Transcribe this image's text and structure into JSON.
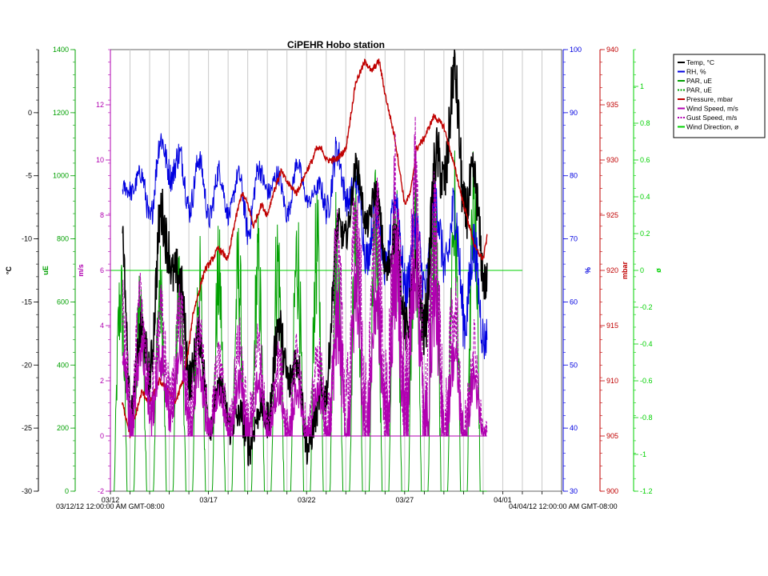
{
  "chart_data": {
    "type": "line",
    "title": "CiPEHR Hobo station",
    "x_start_label": "03/12/12 12:00:00 AM GMT-08:00",
    "x_end_label": "04/04/12 12:00:00 AM GMT-08:00",
    "x_range_days": [
      0,
      23
    ],
    "x_ticks": [
      {
        "day": 0,
        "label": "03/12"
      },
      {
        "day": 5,
        "label": "03/17"
      },
      {
        "day": 10,
        "label": "03/22"
      },
      {
        "day": 15,
        "label": "03/27"
      },
      {
        "day": 20,
        "label": "04/01"
      }
    ],
    "axes": [
      {
        "id": "temp",
        "unit": "°C",
        "color": "#000000",
        "range": [
          -30,
          5
        ],
        "ticks": [
          0,
          -5,
          -10,
          -15,
          -20,
          -25,
          -30
        ]
      },
      {
        "id": "par",
        "unit": "uE",
        "color": "#00a000",
        "range": [
          0,
          1400
        ],
        "ticks": [
          0,
          200,
          400,
          600,
          800,
          1000,
          1200,
          1400
        ]
      },
      {
        "id": "wind",
        "unit": "m/s",
        "color": "#b000b0",
        "range": [
          -2,
          14
        ],
        "ticks": [
          -2,
          0,
          2,
          4,
          6,
          8,
          10,
          12
        ]
      },
      {
        "id": "rh",
        "unit": "%",
        "color": "#0000e0",
        "range": [
          30,
          100
        ],
        "ticks": [
          30,
          40,
          50,
          60,
          70,
          80,
          90,
          100
        ]
      },
      {
        "id": "pressure",
        "unit": "mbar",
        "color": "#c00000",
        "range": [
          900,
          940
        ],
        "ticks": [
          900,
          905,
          910,
          915,
          920,
          925,
          930,
          935,
          940
        ]
      },
      {
        "id": "wdir",
        "unit": "ø",
        "color": "#00d000",
        "range": [
          -1.2,
          1.2
        ],
        "ticks": [
          -1.2,
          -1,
          -0.8,
          -0.6,
          -0.4,
          -0.2,
          0,
          0.2,
          0.4,
          0.6,
          0.8,
          1
        ]
      }
    ],
    "legend": {
      "placement": "right",
      "entries": [
        {
          "label": "Temp, °C",
          "color": "#000000",
          "dash": false
        },
        {
          "label": "RH, %",
          "color": "#0000e0",
          "dash": false
        },
        {
          "label": "PAR, uE",
          "color": "#00a000",
          "dash": false
        },
        {
          "label": "PAR, uE",
          "color": "#00a000",
          "dash": true
        },
        {
          "label": "Pressure, mbar",
          "color": "#c00000",
          "dash": false
        },
        {
          "label": "Wind Speed, m/s",
          "color": "#b000b0",
          "dash": false
        },
        {
          "label": "Gust Speed, m/s",
          "color": "#b000b0",
          "dash": true
        },
        {
          "label": "Wind Direction, ø",
          "color": "#00d000",
          "dash": false
        }
      ]
    },
    "series": [
      {
        "name": "Temp, °C",
        "axis": "temp",
        "color": "#000000",
        "x": [
          0.6,
          1.0,
          1.5,
          2.0,
          2.5,
          3.0,
          3.5,
          4.0,
          4.5,
          5.0,
          5.5,
          6.0,
          6.5,
          7.0,
          7.5,
          8.0,
          8.5,
          9.0,
          9.5,
          10.0,
          10.5,
          11.0,
          11.5,
          12.0,
          12.5,
          13.0,
          13.5,
          14.0,
          14.5,
          15.0,
          15.5,
          16.0,
          16.5,
          17.0,
          17.5,
          18.0,
          18.5,
          19.0,
          19.2
        ],
        "mean": [
          -10,
          -22,
          -20,
          -18,
          -12,
          -8,
          -16,
          -18,
          -20,
          -22,
          -24,
          -22,
          -26,
          -24,
          -26,
          -22,
          -20,
          -18,
          -22,
          -24,
          -26,
          -20,
          -12,
          -8,
          -6,
          -7,
          -8,
          -10,
          -12,
          -14,
          -16,
          -14,
          -8,
          -2,
          0,
          -4,
          -8,
          -10,
          -12
        ],
        "amp": [
          3,
          4,
          4,
          5,
          6,
          5,
          5,
          5,
          4,
          4,
          3,
          4,
          3,
          4,
          3,
          4,
          5,
          5,
          4,
          4,
          3,
          4,
          4,
          3,
          3,
          3,
          3,
          4,
          4,
          5,
          5,
          6,
          6,
          6,
          6,
          6,
          5,
          5,
          4
        ]
      },
      {
        "name": "RH, %",
        "axis": "rh",
        "color": "#0000e0",
        "x": [
          0.6,
          1.0,
          1.5,
          2.0,
          2.5,
          3.0,
          3.5,
          4.0,
          4.5,
          5.0,
          5.5,
          6.0,
          6.5,
          7.0,
          7.5,
          8.0,
          8.5,
          9.0,
          9.5,
          10.0,
          10.5,
          11.0,
          11.5,
          12.0,
          12.5,
          13.0,
          13.5,
          14.0,
          14.5,
          15.0,
          15.5,
          16.0,
          16.5,
          17.0,
          17.5,
          18.0,
          18.5,
          19.0,
          19.2
        ],
        "mean": [
          76,
          80,
          78,
          76,
          82,
          84,
          80,
          78,
          80,
          76,
          78,
          76,
          78,
          74,
          78,
          80,
          78,
          76,
          80,
          78,
          76,
          78,
          80,
          80,
          76,
          72,
          70,
          70,
          72,
          68,
          66,
          68,
          70,
          72,
          68,
          64,
          62,
          60,
          58
        ],
        "amp": [
          3,
          4,
          4,
          6,
          6,
          6,
          6,
          6,
          5,
          5,
          5,
          4,
          4,
          6,
          5,
          4,
          4,
          4,
          4,
          3,
          3,
          6,
          7,
          6,
          6,
          8,
          8,
          8,
          8,
          10,
          10,
          10,
          10,
          10,
          12,
          12,
          12,
          10,
          8
        ]
      },
      {
        "name": "Pressure, mbar",
        "axis": "pressure",
        "color": "#c00000",
        "x": [
          0.6,
          0.9,
          1.0,
          1.3,
          1.6,
          2.0,
          2.5,
          3.0,
          3.3,
          3.7,
          4.0,
          4.2,
          4.5,
          4.8,
          5.2,
          5.5,
          6.0,
          6.3,
          6.7,
          7.0,
          7.3,
          7.7,
          8.0,
          8.3,
          8.7,
          9.0,
          9.5,
          10.0,
          10.3,
          10.5,
          10.8,
          11.0,
          11.5,
          12.0,
          12.5,
          13.0,
          13.3,
          13.7,
          14.0,
          14.5,
          15.0,
          15.3,
          15.6,
          16.0,
          16.5,
          17.0,
          17.3,
          17.6,
          18.0,
          18.3,
          18.6,
          19.0,
          19.2
        ],
        "y": [
          908,
          906,
          905,
          907,
          909,
          908,
          910,
          909,
          908,
          910,
          913,
          916,
          918,
          920,
          921,
          922,
          921,
          924,
          927,
          926,
          924,
          926,
          925,
          927,
          929,
          928,
          927,
          929,
          930,
          931,
          931,
          930,
          930,
          931,
          937,
          939,
          938,
          939,
          936,
          932,
          926,
          927,
          931,
          932,
          934,
          933,
          931,
          929,
          926,
          924,
          922,
          921,
          923
        ]
      },
      {
        "name": "Wind Speed, m/s",
        "axis": "wind",
        "color": "#b000b0",
        "x": [
          0.6,
          1.0,
          1.5,
          2.0,
          2.5,
          3.0,
          3.5,
          4.0,
          4.5,
          5.0,
          5.5,
          6.0,
          6.5,
          7.0,
          7.5,
          8.0,
          8.5,
          9.0,
          9.5,
          10.0,
          10.5,
          11.0,
          11.5,
          12.0,
          12.5,
          13.0,
          13.5,
          14.0,
          14.5,
          15.0,
          15.5,
          16.0,
          16.5,
          17.0,
          17.5,
          18.0,
          18.5,
          19.0,
          19.2
        ],
        "mean": [
          2.5,
          1.5,
          2.0,
          2.0,
          1.5,
          2.0,
          1.8,
          1.5,
          1.2,
          1.0,
          0.8,
          0.8,
          1.0,
          1.2,
          1.0,
          0.8,
          0.8,
          1.0,
          0.8,
          0.6,
          0.8,
          1.0,
          1.8,
          2.5,
          3.0,
          2.5,
          2.5,
          3.0,
          3.0,
          3.5,
          3.5,
          3.0,
          2.5,
          2.0,
          1.5,
          1.2,
          1.0,
          0.6,
          0.4
        ],
        "amp": [
          1.5,
          2.0,
          2.0,
          2.0,
          2.0,
          2.0,
          2.0,
          2.0,
          2.0,
          1.5,
          1.2,
          1.2,
          1.5,
          2.0,
          1.5,
          1.2,
          1.2,
          2.0,
          1.5,
          1.0,
          1.2,
          2.0,
          3.5,
          4.5,
          4.0,
          4.0,
          4.0,
          4.0,
          4.5,
          5.0,
          5.0,
          4.5,
          4.0,
          3.5,
          2.5,
          2.0,
          2.0,
          1.0,
          0.6
        ]
      },
      {
        "name": "Gust Speed, m/s",
        "axis": "wind",
        "color": "#b000b0",
        "dash": true,
        "x": [
          0.6,
          1.0,
          1.5,
          2.0,
          2.5,
          3.0,
          3.5,
          4.0,
          4.5,
          5.0,
          5.5,
          6.0,
          6.5,
          7.0,
          7.5,
          8.0,
          8.5,
          9.0,
          9.5,
          10.0,
          10.5,
          11.0,
          11.5,
          12.0,
          12.5,
          13.0,
          13.5,
          14.0,
          14.5,
          15.0,
          15.5,
          16.0,
          16.5,
          17.0,
          17.5,
          18.0,
          18.5,
          19.0,
          19.2
        ],
        "mean": [
          3.5,
          2.5,
          3.0,
          3.2,
          2.5,
          3.0,
          2.8,
          2.5,
          2.0,
          1.8,
          1.5,
          1.5,
          1.8,
          2.0,
          1.8,
          1.5,
          1.5,
          1.8,
          1.5,
          1.2,
          1.5,
          2.0,
          3.0,
          4.5,
          4.5,
          4.0,
          4.0,
          4.5,
          4.5,
          5.0,
          5.0,
          4.5,
          4.0,
          3.0,
          2.5,
          2.0,
          1.8,
          1.0,
          0.6
        ],
        "amp": [
          2.5,
          3.0,
          3.0,
          3.0,
          3.0,
          3.0,
          3.0,
          3.0,
          3.0,
          2.5,
          2.0,
          2.0,
          2.5,
          3.0,
          2.5,
          2.0,
          2.0,
          3.0,
          2.5,
          1.8,
          2.0,
          3.0,
          6.0,
          6.5,
          6.0,
          6.0,
          6.0,
          6.0,
          6.5,
          7.0,
          7.0,
          6.5,
          6.0,
          5.0,
          4.0,
          3.0,
          3.0,
          1.5,
          0.8
        ]
      },
      {
        "name": "PAR, uE",
        "axis": "par",
        "color": "#00a000",
        "day_count": 19,
        "first_day_offset": 0.15,
        "cycle_days": 1.0,
        "peaks": [
          780,
          760,
          800,
          820,
          840,
          860,
          880,
          900,
          940,
          960,
          980,
          1000,
          1020,
          1040,
          1060,
          1080,
          1100,
          1120,
          1110
        ]
      },
      {
        "name": "Wind Direction, ø",
        "axis": "wdir",
        "color": "#00d000",
        "x": [
          0.0,
          21.0
        ],
        "y": [
          0,
          0
        ]
      }
    ]
  }
}
